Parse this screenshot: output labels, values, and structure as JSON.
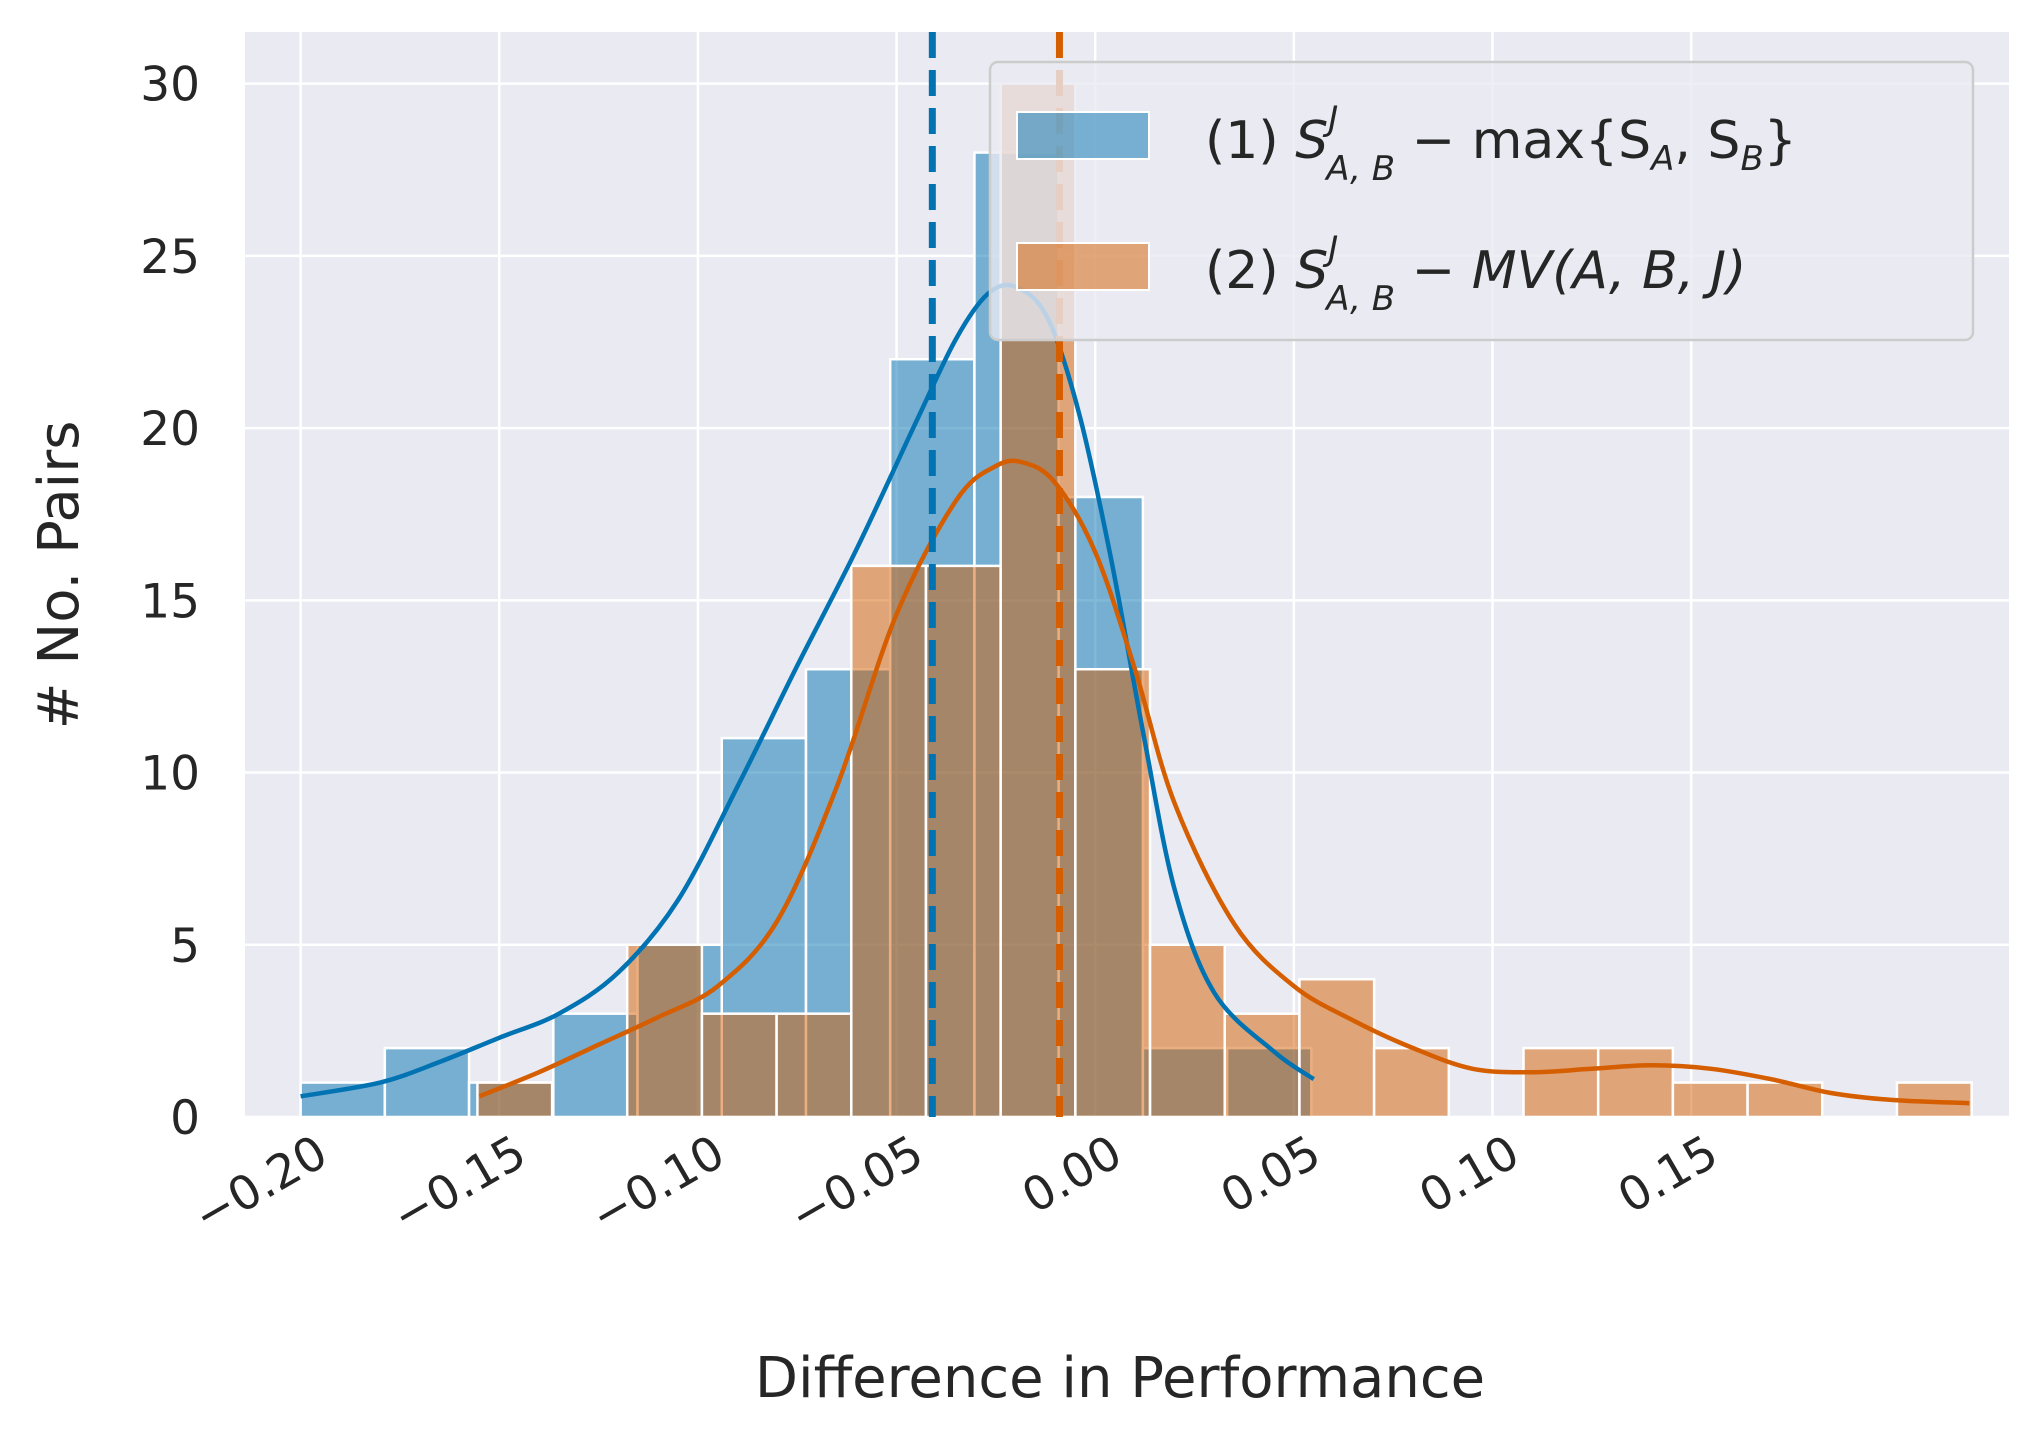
{
  "chart_data": {
    "type": "histogram",
    "xlabel": "Difference in Performance",
    "ylabel": "# No. Pairs",
    "xlim": [
      -0.214,
      0.23
    ],
    "ylim": [
      0,
      31.5
    ],
    "xticks": [
      -0.2,
      -0.15,
      -0.1,
      -0.05,
      0.0,
      0.05,
      0.1,
      0.15
    ],
    "xtick_labels": [
      "−0.20",
      "−0.15",
      "−0.10",
      "−0.05",
      "0.00",
      "0.05",
      "0.10",
      "0.15"
    ],
    "yticks": [
      0,
      5,
      10,
      15,
      20,
      25,
      30
    ],
    "ytick_labels": [
      "0",
      "5",
      "10",
      "15",
      "20",
      "25",
      "30"
    ],
    "grid": true,
    "legend_position": "top-right",
    "series": [
      {
        "name": "(1) S^J_{A,B} − max{S_A, S_B}",
        "legend": {
          "prefix": "(1) ",
          "S": "S",
          "sup": "J",
          "sub": "A, B",
          "rest": " − max{S",
          "sub2": "A",
          "mid": ", S",
          "sub3": "B",
          "end": "}"
        },
        "color": "#0173b2",
        "bins": [
          {
            "x0": -0.2,
            "x1": -0.1788,
            "count": 1
          },
          {
            "x0": -0.1788,
            "x1": -0.1576,
            "count": 2
          },
          {
            "x0": -0.1576,
            "x1": -0.1364,
            "count": 1
          },
          {
            "x0": -0.1364,
            "x1": -0.1152,
            "count": 3
          },
          {
            "x0": -0.1152,
            "x1": -0.094,
            "count": 5
          },
          {
            "x0": -0.094,
            "x1": -0.0728,
            "count": 11
          },
          {
            "x0": -0.0728,
            "x1": -0.0516,
            "count": 13
          },
          {
            "x0": -0.0516,
            "x1": -0.0304,
            "count": 22
          },
          {
            "x0": -0.0304,
            "x1": -0.0092,
            "count": 28
          },
          {
            "x0": -0.0092,
            "x1": 0.012,
            "count": 18
          },
          {
            "x0": 0.012,
            "x1": 0.0332,
            "count": 2
          },
          {
            "x0": 0.0332,
            "x1": 0.0544,
            "count": 2
          }
        ],
        "mean": -0.041,
        "kde": {
          "x": [
            -0.2,
            -0.18,
            -0.165,
            -0.15,
            -0.135,
            -0.12,
            -0.105,
            -0.09,
            -0.075,
            -0.06,
            -0.045,
            -0.035,
            -0.027,
            -0.02,
            -0.012,
            -0.004,
            0.004,
            0.012,
            0.02,
            0.03,
            0.045,
            0.055
          ],
          "y": [
            0.6,
            1.0,
            1.6,
            2.3,
            3.0,
            4.2,
            6.3,
            9.6,
            13.1,
            16.5,
            20.2,
            22.6,
            23.9,
            24.1,
            23.2,
            20.4,
            16.2,
            11.2,
            6.6,
            3.6,
            1.9,
            1.1
          ]
        }
      },
      {
        "name": "(2) S^J_{A,B} − MV(A, B, J)",
        "legend": {
          "prefix": "(2) ",
          "S": "S",
          "sup": "J",
          "sub": "A, B",
          "rest": " − MV(A, B, J)"
        },
        "color": "#d55e00",
        "bins": [
          {
            "x0": -0.1555,
            "x1": -0.1367,
            "count": 1
          },
          {
            "x0": -0.1178,
            "x1": -0.099,
            "count": 5
          },
          {
            "x0": -0.099,
            "x1": -0.0802,
            "count": 3
          },
          {
            "x0": -0.0802,
            "x1": -0.0614,
            "count": 3
          },
          {
            "x0": -0.0614,
            "x1": -0.0426,
            "count": 16
          },
          {
            "x0": -0.0426,
            "x1": -0.0238,
            "count": 16
          },
          {
            "x0": -0.0238,
            "x1": -0.005,
            "count": 30
          },
          {
            "x0": -0.005,
            "x1": 0.0138,
            "count": 13
          },
          {
            "x0": 0.0138,
            "x1": 0.0326,
            "count": 5
          },
          {
            "x0": 0.0326,
            "x1": 0.0514,
            "count": 3
          },
          {
            "x0": 0.0514,
            "x1": 0.0702,
            "count": 4
          },
          {
            "x0": 0.0702,
            "x1": 0.089,
            "count": 2
          },
          {
            "x0": 0.1078,
            "x1": 0.1266,
            "count": 2
          },
          {
            "x0": 0.1266,
            "x1": 0.1454,
            "count": 2
          },
          {
            "x0": 0.1454,
            "x1": 0.1642,
            "count": 1
          },
          {
            "x0": 0.1642,
            "x1": 0.183,
            "count": 1
          },
          {
            "x0": 0.2018,
            "x1": 0.2206,
            "count": 1
          }
        ],
        "mean": -0.009,
        "kde": {
          "x": [
            -0.155,
            -0.14,
            -0.125,
            -0.11,
            -0.095,
            -0.08,
            -0.065,
            -0.05,
            -0.035,
            -0.025,
            -0.018,
            -0.01,
            0.0,
            0.01,
            0.02,
            0.035,
            0.05,
            0.065,
            0.08,
            0.095,
            0.11,
            0.125,
            0.14,
            0.155,
            0.17,
            0.185,
            0.2,
            0.22
          ],
          "y": [
            0.6,
            1.3,
            2.1,
            2.9,
            3.8,
            5.7,
            9.6,
            14.6,
            17.9,
            18.9,
            19.0,
            18.4,
            16.4,
            13.0,
            9.1,
            5.6,
            3.8,
            2.8,
            2.0,
            1.4,
            1.3,
            1.4,
            1.5,
            1.4,
            1.1,
            0.7,
            0.5,
            0.4
          ]
        }
      }
    ]
  }
}
